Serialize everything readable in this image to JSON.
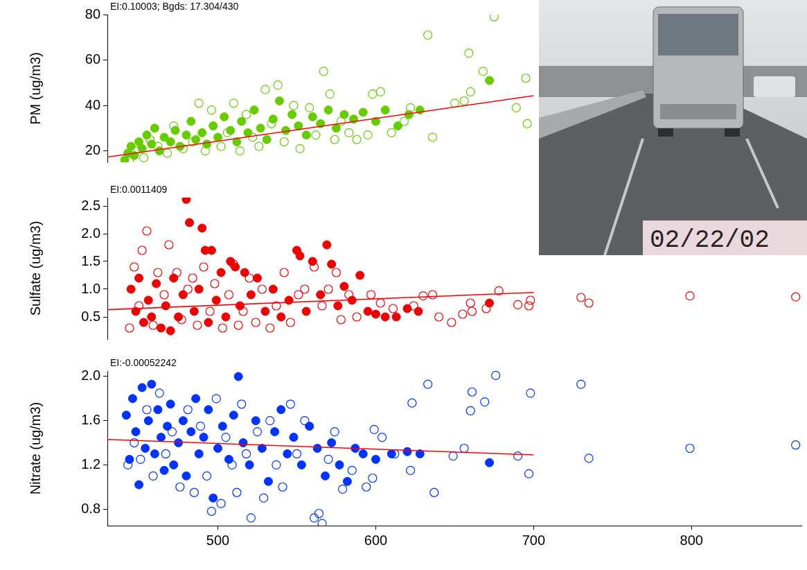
{
  "chart_data": [
    {
      "type": "scatter",
      "ylabel": "PM (ug/m3)",
      "annotation": "EI:0.10003; Bgds: 17.304/430",
      "xlim": [
        430,
        870
      ],
      "ylim": [
        15,
        80
      ],
      "yticks": [
        20,
        40,
        60,
        80
      ],
      "tick_labels": "y",
      "series": [
        {
          "type": "line",
          "line_style": "solid",
          "color": "#ff0000",
          "x": [
            430,
            700
          ],
          "values": [
            17.3,
            44.3
          ]
        },
        {
          "marker": "circle",
          "color": "#66cc00",
          "x": [
            441,
            443,
            445,
            447,
            450,
            452,
            455,
            458,
            460,
            463,
            466,
            470,
            473,
            476,
            480,
            483,
            486,
            490,
            493,
            497,
            500,
            504,
            508,
            512,
            515,
            519,
            523,
            527,
            531,
            535,
            539,
            543,
            547,
            551,
            556,
            560,
            565,
            570,
            575,
            580,
            586,
            592,
            600,
            606,
            614,
            621,
            628,
            672
          ],
          "values": [
            16,
            19,
            22,
            18,
            24,
            21,
            27,
            23,
            30,
            20,
            26,
            24,
            29,
            22,
            27,
            33,
            25,
            28,
            23,
            31,
            26,
            35,
            29,
            24,
            33,
            28,
            38,
            30,
            25,
            34,
            42,
            29,
            36,
            31,
            27,
            35,
            32,
            38,
            30,
            36,
            34,
            37,
            33,
            38,
            31,
            36,
            38,
            51
          ]
        },
        {
          "marker": "circle_open",
          "color": "#66cc00",
          "x": [
            444,
            448,
            453,
            457,
            462,
            468,
            472,
            478,
            484,
            488,
            492,
            496,
            502,
            506,
            510,
            514,
            518,
            522,
            526,
            530,
            534,
            538,
            542,
            548,
            552,
            558,
            562,
            567,
            571,
            574,
            578,
            583,
            588,
            595,
            598,
            603,
            610,
            618,
            622,
            633,
            636,
            650,
            656,
            659,
            660,
            668,
            675,
            689,
            695,
            696
          ],
          "values": [
            15.5,
            20,
            17,
            25,
            22,
            19,
            31,
            21,
            24,
            41,
            20,
            38,
            22,
            28,
            41,
            20,
            36,
            26,
            22,
            47,
            32,
            49,
            24,
            40,
            21,
            39,
            27,
            55,
            45,
            25,
            33,
            28,
            25,
            27,
            45,
            46,
            28,
            33,
            39,
            71,
            26,
            41,
            42,
            63,
            46,
            55,
            79,
            39,
            52,
            32
          ]
        }
      ]
    },
    {
      "type": "scatter",
      "ylabel": "Sulfate (ug/m3)",
      "annotation": "EI:0.0011409",
      "xlim": [
        430,
        870
      ],
      "ylim": [
        0.1,
        2.65
      ],
      "yticks": [
        0.5,
        {
          "value": 1,
          "label": "1.0"
        },
        1.5,
        {
          "value": 2,
          "label": "2.0"
        },
        2.5
      ],
      "tick_labels": "y",
      "series": [
        {
          "type": "line",
          "line_style": "solid",
          "color": "#ff0000",
          "x": [
            430,
            700
          ],
          "values": [
            0.63,
            0.94
          ]
        },
        {
          "marker": "circle",
          "color": "#ee0000",
          "x": [
            445,
            448,
            450,
            453,
            456,
            458,
            461,
            464,
            467,
            470,
            472,
            475,
            478,
            480,
            482,
            485,
            488,
            490,
            492,
            494,
            496,
            499,
            502,
            505,
            508,
            511,
            514,
            517,
            521,
            525,
            530,
            535,
            540,
            545,
            550,
            552,
            556,
            560,
            565,
            569,
            572,
            576,
            580,
            585,
            590,
            595,
            600,
            606,
            613,
            620,
            627,
            672
          ],
          "values": [
            1.0,
            0.6,
            1.2,
            0.4,
            0.8,
            0.5,
            1.1,
            0.3,
            0.7,
            0.25,
            1.2,
            0.5,
            0.9,
            2.62,
            2.2,
            0.6,
            1.0,
            2.1,
            1.7,
            0.4,
            1.7,
            0.8,
            1.3,
            0.5,
            1.5,
            1.4,
            0.7,
            1.3,
            0.9,
            1.2,
            0.6,
            1.0,
            0.5,
            0.8,
            1.7,
            1.6,
            0.6,
            1.5,
            0.9,
            1.8,
            1.45,
            0.7,
            1.05,
            0.8,
            1.25,
            0.6,
            0.55,
            0.5,
            0.5,
            0.65,
            0.6,
            0.75
          ]
        },
        {
          "marker": "circle_open",
          "color": "#ee0000",
          "x": [
            444,
            447,
            450,
            452,
            455,
            459,
            462,
            466,
            469,
            474,
            477,
            481,
            484,
            487,
            491,
            495,
            498,
            503,
            507,
            510,
            513,
            516,
            520,
            524,
            528,
            533,
            537,
            542,
            546,
            551,
            555,
            561,
            566,
            570,
            575,
            578,
            583,
            588,
            597,
            603,
            611,
            624,
            630,
            636,
            640,
            648,
            655,
            660,
            661,
            670,
            678,
            690,
            697,
            698,
            730,
            735,
            799,
            866
          ],
          "values": [
            0.3,
            1.4,
            0.7,
            1.7,
            2.05,
            0.35,
            1.3,
            0.9,
            1.8,
            1.3,
            0.45,
            1.0,
            1.2,
            0.35,
            1.4,
            0.6,
            1.1,
            0.3,
            0.9,
            1.45,
            0.35,
            0.6,
            1.2,
            0.4,
            1.0,
            0.3,
            0.7,
            1.3,
            0.4,
            0.9,
            1.0,
            1.4,
            0.7,
            1.0,
            1.3,
            0.45,
            0.9,
            0.5,
            0.9,
            0.75,
            0.65,
            0.7,
            0.88,
            0.9,
            0.5,
            0.4,
            0.55,
            0.75,
            0.6,
            0.65,
            0.97,
            0.72,
            0.7,
            0.8,
            0.85,
            0.75,
            0.88,
            0.86
          ]
        }
      ]
    },
    {
      "type": "scatter",
      "ylabel": "Nitrate (ug/m3)",
      "annotation": "EI:-0.00052242",
      "xlim": [
        430,
        870
      ],
      "xticks": [
        500,
        600,
        700,
        800
      ],
      "ylim": [
        0.65,
        2.05
      ],
      "yticks": [
        0.8,
        1.2,
        1.6,
        {
          "value": 2,
          "label": "2.0"
        }
      ],
      "series": [
        {
          "type": "line",
          "line_style": "solid",
          "color": "#ff0000",
          "x": [
            430,
            700
          ],
          "values": [
            1.43,
            1.29
          ]
        },
        {
          "marker": "circle",
          "color": "#0033ff",
          "x": [
            442,
            444,
            446,
            448,
            450,
            452,
            454,
            456,
            458,
            460,
            462,
            464,
            466,
            468,
            470,
            472,
            475,
            478,
            480,
            483,
            486,
            488,
            491,
            494,
            497,
            500,
            503,
            507,
            510,
            513,
            516,
            520,
            524,
            528,
            532,
            536,
            540,
            544,
            548,
            553,
            558,
            563,
            568,
            572,
            577,
            582,
            587,
            592,
            600,
            610,
            620,
            628,
            672
          ],
          "values": [
            1.65,
            1.25,
            1.8,
            1.5,
            1.02,
            1.9,
            1.35,
            1.6,
            1.93,
            1.3,
            1.7,
            1.45,
            1.15,
            1.55,
            1.75,
            1.2,
            1.4,
            1.6,
            1.1,
            1.5,
            1.8,
            1.3,
            1.45,
            1.7,
            0.9,
            1.35,
            1.55,
            1.25,
            1.65,
            2.0,
            1.4,
            1.2,
            1.6,
            1.35,
            1.05,
            1.5,
            1.7,
            1.3,
            1.45,
            1.2,
            1.55,
            1.35,
            1.1,
            1.4,
            1.2,
            1.05,
            1.35,
            1.3,
            1.25,
            1.3,
            1.32,
            1.3,
            1.22
          ]
        },
        {
          "marker": "circle_open",
          "color": "#0033ff",
          "x": [
            443,
            447,
            451,
            455,
            459,
            463,
            467,
            471,
            476,
            481,
            485,
            489,
            493,
            496,
            499,
            502,
            505,
            509,
            512,
            515,
            518,
            521,
            525,
            529,
            533,
            537,
            541,
            546,
            550,
            555,
            561,
            564,
            566,
            570,
            574,
            579,
            585,
            594,
            598,
            599,
            604,
            612,
            622,
            623,
            633,
            637,
            649,
            656,
            660,
            661,
            669,
            676,
            690,
            697,
            698,
            730,
            735,
            799,
            866
          ],
          "values": [
            1.2,
            1.4,
            1.25,
            1.7,
            1.1,
            1.85,
            1.3,
            1.5,
            1.0,
            1.7,
            0.95,
            1.55,
            1.1,
            0.78,
            1.8,
            0.85,
            1.45,
            1.2,
            0.95,
            1.75,
            1.3,
            0.72,
            1.5,
            0.9,
            1.6,
            1.2,
            1.0,
            1.75,
            1.3,
            1.6,
            0.72,
            0.76,
            0.67,
            1.25,
            1.5,
            0.98,
            1.15,
            1.0,
            1.08,
            1.52,
            1.45,
            1.3,
            1.15,
            1.76,
            1.93,
            0.95,
            1.28,
            1.35,
            1.69,
            1.86,
            1.77,
            2.01,
            1.28,
            1.12,
            1.85,
            1.93,
            1.26,
            1.35,
            1.38
          ]
        }
      ]
    }
  ],
  "photo_inset": {
    "date_stamp": "02/22/02"
  }
}
